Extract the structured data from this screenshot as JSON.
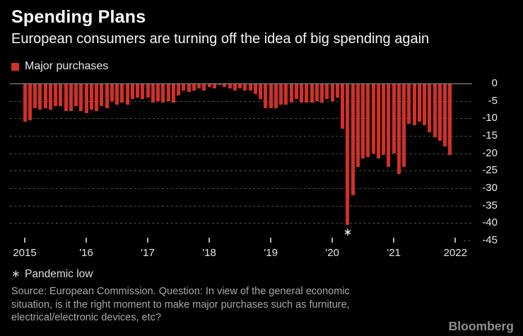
{
  "header": {
    "title": "Spending Plans",
    "subtitle": "European consumers are turning off the idea of big spending again"
  },
  "legend": {
    "label": "Major purchases",
    "swatch_color": "#d13027"
  },
  "chart_data": {
    "type": "bar",
    "series_name": "Major purchases",
    "frequency": "monthly",
    "start_month": "2015-01",
    "end_month": "2021-12",
    "unit": "net balance of survey responses",
    "values": [
      -11,
      -10.5,
      -7,
      -7.5,
      -7,
      -7.5,
      -6.5,
      -6.5,
      -8,
      -8,
      -6.5,
      -8,
      -8.5,
      -7.5,
      -8,
      -6.5,
      -7,
      -5,
      -6,
      -5.5,
      -6,
      -4.5,
      -4,
      -4.5,
      -4,
      -5.5,
      -5,
      -5.5,
      -5,
      -5.5,
      -3.5,
      -2,
      -2.5,
      -2,
      -1.5,
      -2,
      -1,
      -1.5,
      -0.5,
      -1,
      -1.5,
      -2,
      -1.5,
      -2,
      -2,
      -3,
      -4.5,
      -7,
      -7,
      -7,
      -6,
      -6,
      -5.5,
      -4.5,
      -5.5,
      -5.5,
      -5.5,
      -5,
      -5.5,
      -4.5,
      -5,
      -4,
      -13,
      -40.5,
      -32,
      -24,
      -21.5,
      -21,
      -20,
      -21.5,
      -20.5,
      -24,
      -20,
      -26,
      -24,
      -11.5,
      -12,
      -11,
      -12,
      -14,
      -15.5,
      -16.5,
      -18,
      -20.5
    ],
    "x_tick_labels": [
      "2015",
      "'16",
      "'17",
      "'18",
      "'19",
      "'20",
      "'21",
      "2022"
    ],
    "y_ticks": [
      0,
      -5,
      -10,
      -15,
      -20,
      -25,
      -30,
      -35,
      -40,
      -45
    ],
    "ylim": [
      -45,
      0
    ],
    "y_axis_side": "right",
    "grid": "dotted horizontal",
    "bar_color": "#d13027",
    "annotation": {
      "marker": "∗",
      "label": "Pandemic low",
      "month": "2020-04",
      "value": -40.5
    }
  },
  "footnote": {
    "marker": "∗",
    "text": "Pandemic low"
  },
  "source": {
    "lines": [
      "Source: European Commission. Question: In view of the general economic",
      "situation, is it the right moment to make major purchases such as furniture,",
      "electrical/electronic devices, etc?"
    ]
  },
  "branding": {
    "logo_text": "Bloomberg"
  },
  "colors": {
    "background": "#000000",
    "bar": "#d13027",
    "title_text": "#ffffff",
    "axis_text": "#e8e8e8",
    "gridline": "#4f4f4f",
    "zero_line": "#9a9a9a",
    "source_text": "#a8a8a8",
    "logo_text": "#8f8f8f"
  }
}
